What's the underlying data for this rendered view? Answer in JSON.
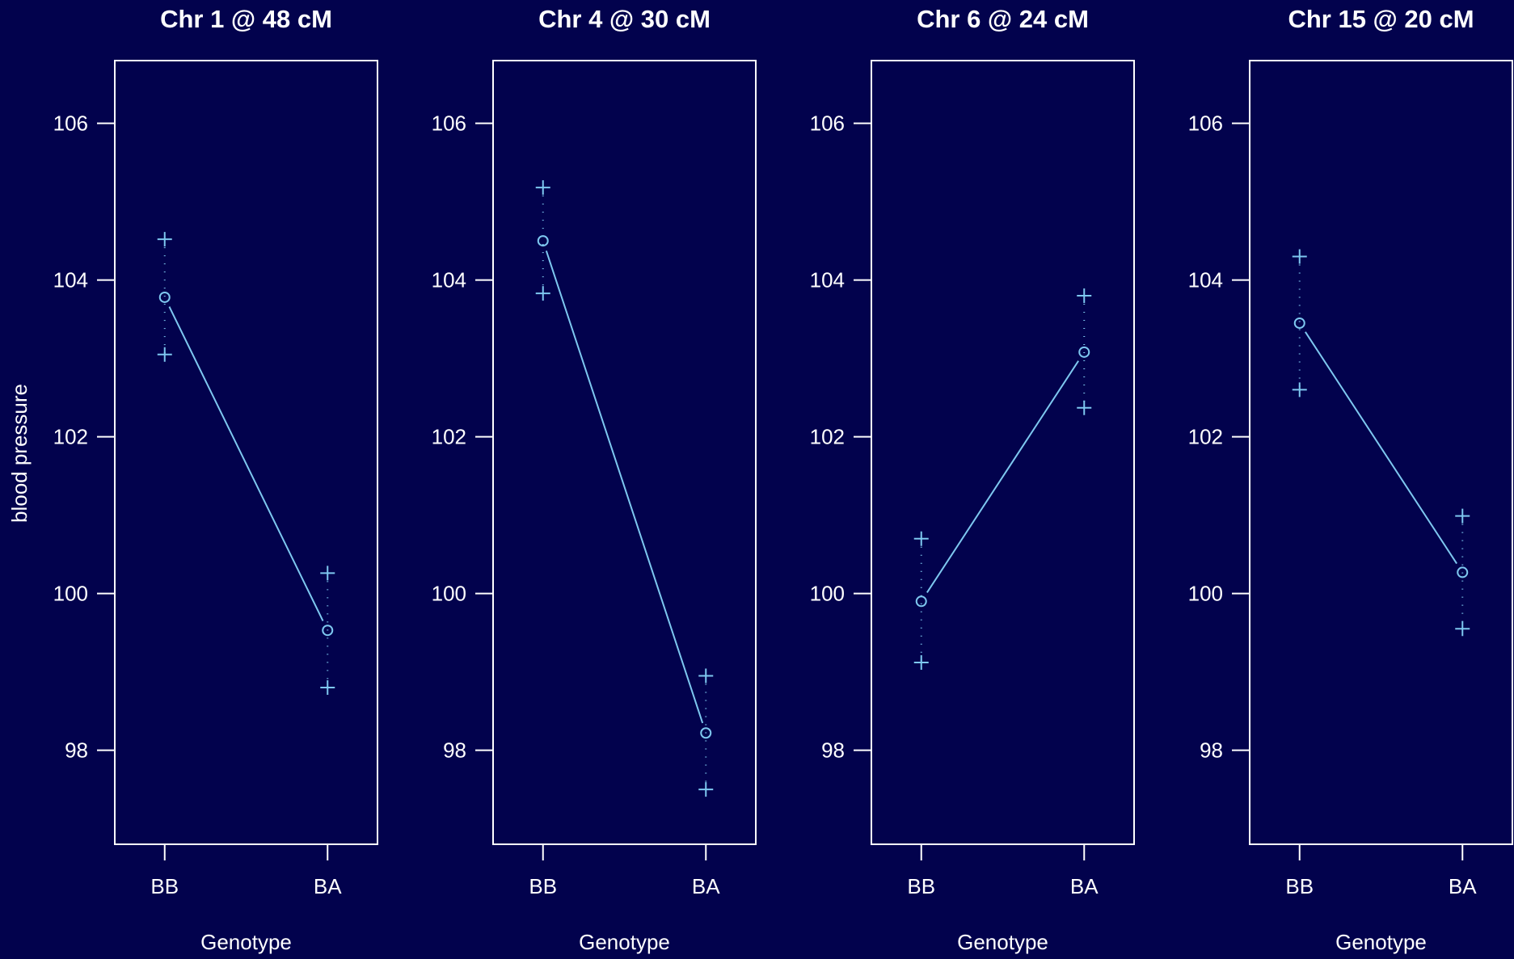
{
  "chart_data": {
    "type": "line",
    "ylabel": "blood pressure",
    "xlabel": "Genotype",
    "ylim": [
      96.8,
      106.8
    ],
    "yticks": [
      98,
      100,
      102,
      104,
      106
    ],
    "categories": [
      "BB",
      "BA"
    ],
    "colors": {
      "background": "#02024d",
      "foreground": "#ffffff",
      "series": "#7ec8f0"
    },
    "panels": [
      {
        "title": "Chr 1 @ 48 cM",
        "means": [
          103.78,
          99.53
        ],
        "upper": [
          104.52,
          100.26
        ],
        "lower": [
          103.05,
          98.8
        ]
      },
      {
        "title": "Chr 4 @ 30 cM",
        "means": [
          104.5,
          98.22
        ],
        "upper": [
          105.18,
          98.95
        ],
        "lower": [
          103.83,
          97.5
        ]
      },
      {
        "title": "Chr 6 @ 24 cM",
        "means": [
          99.9,
          103.08
        ],
        "upper": [
          100.7,
          103.8
        ],
        "lower": [
          99.12,
          102.37
        ]
      },
      {
        "title": "Chr 15 @ 20 cM",
        "means": [
          103.45,
          100.27
        ],
        "upper": [
          104.3,
          100.99
        ],
        "lower": [
          102.6,
          99.55
        ]
      }
    ]
  }
}
